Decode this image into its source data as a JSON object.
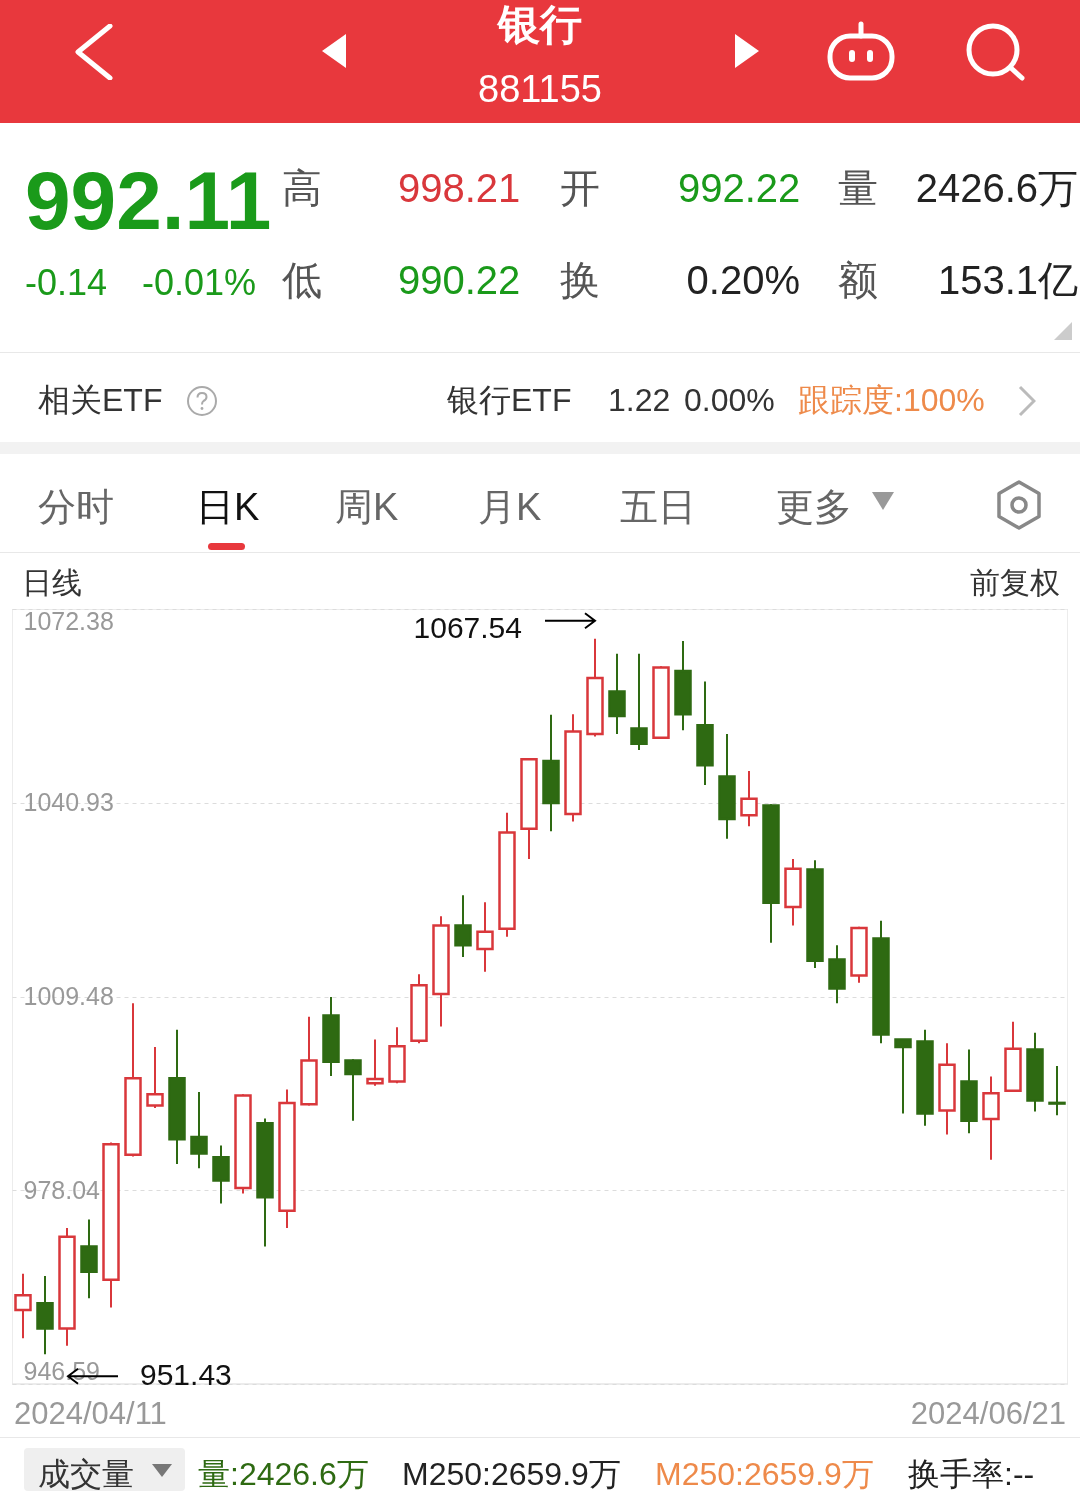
{
  "chart_data": {
    "type": "candlestick",
    "title": "银行",
    "subtitle": "881155",
    "categories": [
      null,
      null,
      null,
      null,
      null,
      null,
      null,
      null,
      null,
      null,
      null,
      null,
      null,
      null,
      null,
      null,
      null,
      null,
      null,
      null,
      null,
      null,
      null,
      null,
      null,
      null,
      null,
      null,
      null,
      null,
      null,
      null,
      null,
      null,
      null,
      null,
      null,
      null,
      null,
      null,
      null,
      null,
      null,
      null,
      null,
      null,
      null,
      null
    ],
    "ohlc": [
      [
        958.6,
        964.5,
        954.0,
        961.0
      ],
      [
        959.7,
        964.1,
        951.43,
        955.6
      ],
      [
        955.6,
        971.9,
        952.8,
        970.5
      ],
      [
        968.9,
        973.3,
        960.5,
        964.8
      ],
      [
        963.5,
        985.8,
        959.0,
        985.5
      ],
      [
        983.8,
        1008.4,
        983.5,
        996.2
      ],
      [
        991.8,
        1001.3,
        991.4,
        993.6
      ],
      [
        996.2,
        1004.1,
        982.3,
        986.3
      ],
      [
        986.7,
        994.0,
        981.6,
        984.0
      ],
      [
        983.4,
        985.3,
        975.9,
        979.6
      ],
      [
        978.4,
        993.6,
        977.5,
        993.4
      ],
      [
        988.9,
        989.7,
        968.9,
        976.9
      ],
      [
        974.7,
        994.4,
        971.9,
        992.2
      ],
      [
        992.0,
        1006.2,
        991.8,
        999.1
      ],
      [
        1006.4,
        1009.4,
        996.6,
        998.9
      ],
      [
        999.1,
        999.3,
        989.3,
        996.9
      ],
      [
        995.4,
        1002.5,
        995.0,
        996.1
      ],
      [
        995.7,
        1004.5,
        995.4,
        1001.4
      ],
      [
        1002.3,
        1013.1,
        1001.9,
        1011.3
      ],
      [
        1009.9,
        1022.5,
        1004.6,
        1021.0
      ],
      [
        1021.0,
        1025.9,
        1015.9,
        1017.8
      ],
      [
        1017.2,
        1024.8,
        1013.5,
        1020.0
      ],
      [
        1020.5,
        1039.3,
        1019.2,
        1036.1
      ],
      [
        1036.7,
        1048.2,
        1031.8,
        1048.0
      ],
      [
        1047.7,
        1055.2,
        1036.3,
        1040.9
      ],
      [
        1039.1,
        1055.3,
        1037.9,
        1052.5
      ],
      [
        1052.1,
        1067.54,
        1051.7,
        1061.2
      ],
      [
        1059.0,
        1065.1,
        1052.1,
        1055.0
      ],
      [
        1053.0,
        1065.1,
        1049.5,
        1050.5
      ],
      [
        1051.5,
        1063.1,
        1051.3,
        1062.9
      ],
      [
        1062.3,
        1067.2,
        1052.7,
        1055.3
      ],
      [
        1053.5,
        1060.6,
        1043.8,
        1047.0
      ],
      [
        1045.2,
        1052.1,
        1035.1,
        1038.3
      ],
      [
        1038.9,
        1046.1,
        1037.1,
        1041.6
      ],
      [
        1040.5,
        1040.7,
        1018.2,
        1024.7
      ],
      [
        1024.0,
        1031.8,
        1021.0,
        1030.2
      ],
      [
        1030.1,
        1031.6,
        1014.1,
        1015.3
      ],
      [
        1015.5,
        1017.8,
        1008.4,
        1010.8
      ],
      [
        1012.9,
        1020.8,
        1011.7,
        1020.6
      ],
      [
        1018.9,
        1021.8,
        1001.9,
        1003.3
      ],
      [
        1002.5,
        1002.6,
        990.5,
        1001.3
      ],
      [
        1002.2,
        1004.1,
        988.5,
        990.5
      ],
      [
        991.0,
        1001.9,
        987.1,
        998.4
      ],
      [
        995.7,
        1000.9,
        987.3,
        989.3
      ],
      [
        989.6,
        996.5,
        983.0,
        993.8
      ],
      [
        994.2,
        1005.4,
        994.0,
        1001.0
      ],
      [
        1000.9,
        1003.6,
        990.8,
        992.6
      ],
      [
        992.22,
        998.21,
        990.22,
        992.11
      ]
    ],
    "ylim": [
      946.59,
      1072.38
    ],
    "yticks": [
      946.59,
      978.04,
      1009.48,
      1040.93,
      1072.38
    ],
    "grid": "y",
    "annotations": [
      "992.11",
      "-0.14",
      "-0.01%",
      "高",
      "998.21",
      "开",
      "992.22",
      "量",
      "2426.6万",
      "低",
      "990.22",
      "换",
      "0.20%",
      "额",
      "153.1亿",
      "相关ETF",
      "银行ETF",
      "1.22",
      "0.00%",
      "跟踪度:100%",
      "分时",
      "日K",
      "周K",
      "月K",
      "五日",
      "更多",
      "日线",
      "前复权",
      "成交量",
      "量:2426.6万",
      "M250:2659.9万",
      "M250:2659.9万",
      "换手率:--",
      "2024/04/11",
      "2024/06/21",
      "1067.54",
      "951.43"
    ]
  }
}
